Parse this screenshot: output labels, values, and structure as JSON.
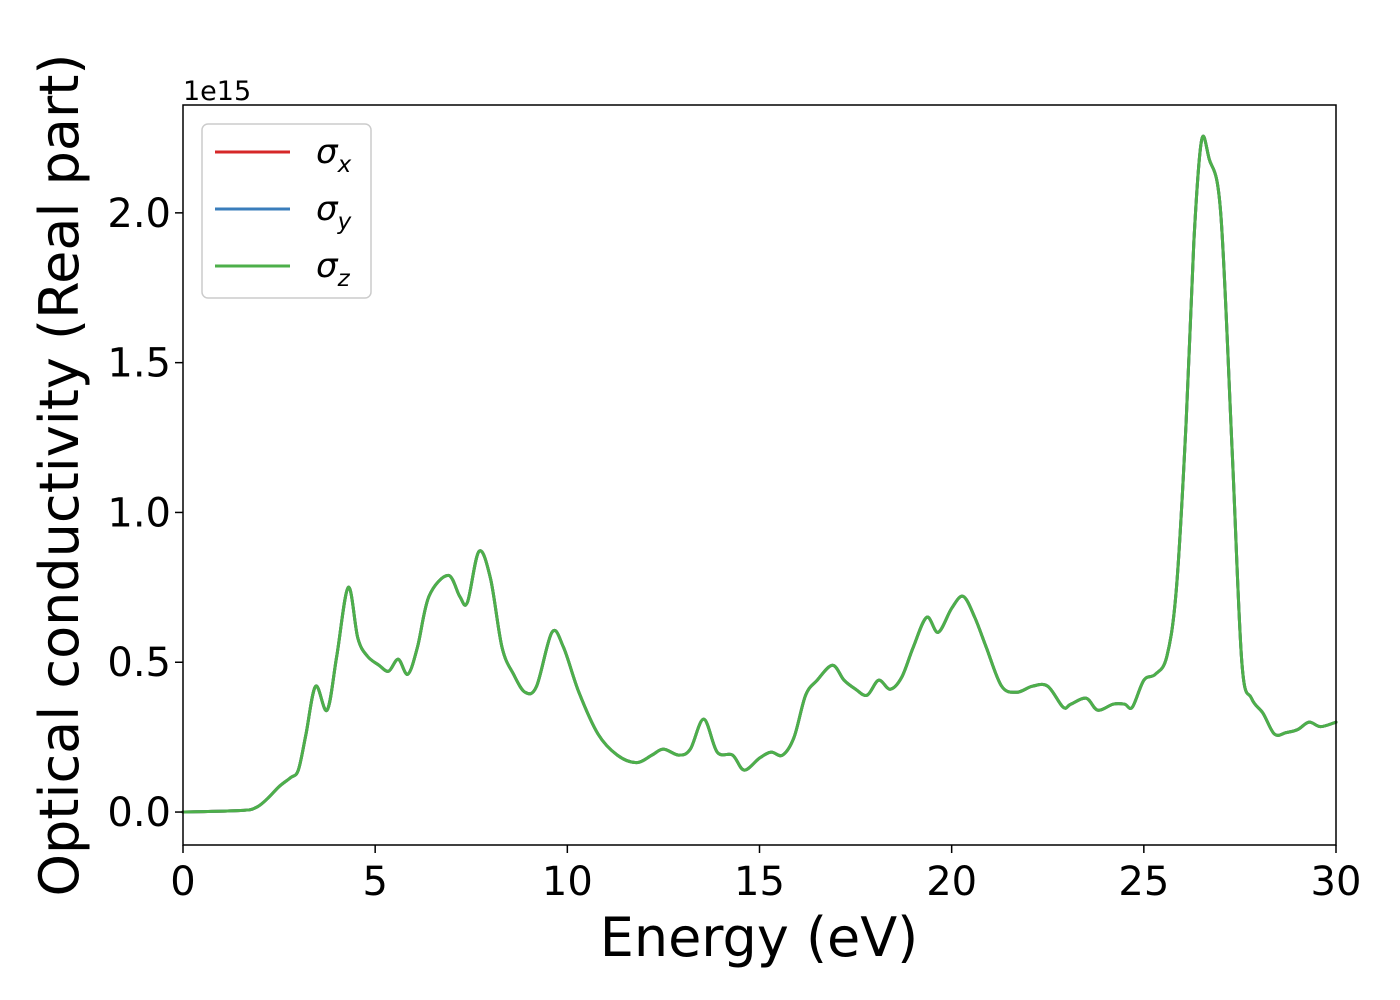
{
  "chart_data": {
    "type": "line",
    "xlabel": "Energy (eV)",
    "ylabel": "Optical conductivity (Real part)",
    "y_offset_label": "1e15",
    "xlim": [
      0,
      30
    ],
    "ylim": [
      -0.11,
      2.36
    ],
    "x_ticks": [
      0,
      5,
      10,
      15,
      20,
      25,
      30
    ],
    "x_tick_labels": [
      "0",
      "5",
      "10",
      "15",
      "20",
      "25",
      "30"
    ],
    "y_ticks": [
      0.0,
      0.5,
      1.0,
      1.5,
      2.0
    ],
    "y_tick_labels": [
      "0.0",
      "0.5",
      "1.0",
      "1.5",
      "2.0"
    ],
    "grid": false,
    "legend_position": "top-left",
    "series": [
      {
        "name": "σx",
        "legend_base": "σ",
        "legend_sub": "x",
        "color": "#d62728",
        "x": [
          0,
          1.5,
          1.9,
          2.2,
          2.5,
          2.8,
          3.0,
          3.2,
          3.45,
          3.75,
          4.0,
          4.3,
          4.55,
          4.8,
          5.1,
          5.35,
          5.6,
          5.85,
          6.1,
          6.4,
          6.9,
          7.2,
          7.4,
          7.7,
          8.0,
          8.3,
          8.6,
          8.9,
          9.2,
          9.6,
          9.9,
          10.3,
          10.8,
          11.3,
          11.8,
          12.2,
          12.5,
          12.9,
          13.2,
          13.55,
          13.9,
          14.3,
          14.6,
          15.0,
          15.3,
          15.6,
          15.9,
          16.2,
          16.5,
          16.9,
          17.2,
          17.5,
          17.8,
          18.1,
          18.4,
          18.7,
          19.0,
          19.35,
          19.65,
          20.0,
          20.3,
          20.6,
          20.9,
          21.3,
          21.7,
          22.1,
          22.5,
          22.9,
          23.1,
          23.5,
          23.8,
          24.2,
          24.5,
          24.7,
          25.0,
          25.3,
          25.6,
          25.85,
          26.1,
          26.3,
          26.5,
          26.7,
          27.0,
          27.3,
          27.55,
          27.8,
          28.1,
          28.4,
          28.7,
          29.0,
          29.3,
          29.6,
          30.0
        ],
        "values": [
          0.0,
          0.005,
          0.015,
          0.045,
          0.085,
          0.115,
          0.14,
          0.26,
          0.42,
          0.34,
          0.52,
          0.75,
          0.58,
          0.52,
          0.49,
          0.47,
          0.51,
          0.46,
          0.55,
          0.72,
          0.79,
          0.72,
          0.7,
          0.87,
          0.78,
          0.55,
          0.46,
          0.4,
          0.42,
          0.6,
          0.55,
          0.4,
          0.26,
          0.19,
          0.165,
          0.19,
          0.21,
          0.19,
          0.21,
          0.31,
          0.2,
          0.19,
          0.14,
          0.18,
          0.2,
          0.19,
          0.25,
          0.39,
          0.44,
          0.49,
          0.44,
          0.41,
          0.39,
          0.44,
          0.41,
          0.45,
          0.55,
          0.65,
          0.6,
          0.68,
          0.72,
          0.65,
          0.55,
          0.42,
          0.4,
          0.42,
          0.42,
          0.35,
          0.36,
          0.38,
          0.34,
          0.36,
          0.36,
          0.35,
          0.44,
          0.46,
          0.52,
          0.75,
          1.3,
          1.9,
          2.24,
          2.18,
          2.0,
          1.2,
          0.5,
          0.38,
          0.33,
          0.26,
          0.265,
          0.275,
          0.3,
          0.285,
          0.3
        ]
      },
      {
        "name": "σy",
        "legend_base": "σ",
        "legend_sub": "y",
        "color": "#3a7dbb",
        "x": [
          0,
          1.5,
          1.9,
          2.2,
          2.5,
          2.8,
          3.0,
          3.2,
          3.45,
          3.75,
          4.0,
          4.3,
          4.55,
          4.8,
          5.1,
          5.35,
          5.6,
          5.85,
          6.1,
          6.4,
          6.9,
          7.2,
          7.4,
          7.7,
          8.0,
          8.3,
          8.6,
          8.9,
          9.2,
          9.6,
          9.9,
          10.3,
          10.8,
          11.3,
          11.8,
          12.2,
          12.5,
          12.9,
          13.2,
          13.55,
          13.9,
          14.3,
          14.6,
          15.0,
          15.3,
          15.6,
          15.9,
          16.2,
          16.5,
          16.9,
          17.2,
          17.5,
          17.8,
          18.1,
          18.4,
          18.7,
          19.0,
          19.35,
          19.65,
          20.0,
          20.3,
          20.6,
          20.9,
          21.3,
          21.7,
          22.1,
          22.5,
          22.9,
          23.1,
          23.5,
          23.8,
          24.2,
          24.5,
          24.7,
          25.0,
          25.3,
          25.6,
          25.85,
          26.1,
          26.3,
          26.5,
          26.7,
          27.0,
          27.3,
          27.55,
          27.8,
          28.1,
          28.4,
          28.7,
          29.0,
          29.3,
          29.6,
          30.0
        ],
        "values": [
          0.0,
          0.005,
          0.015,
          0.045,
          0.085,
          0.115,
          0.14,
          0.26,
          0.42,
          0.34,
          0.52,
          0.75,
          0.58,
          0.52,
          0.49,
          0.47,
          0.51,
          0.46,
          0.55,
          0.72,
          0.79,
          0.72,
          0.7,
          0.87,
          0.78,
          0.55,
          0.46,
          0.4,
          0.42,
          0.6,
          0.55,
          0.4,
          0.26,
          0.19,
          0.165,
          0.19,
          0.21,
          0.19,
          0.21,
          0.31,
          0.2,
          0.19,
          0.14,
          0.18,
          0.2,
          0.19,
          0.25,
          0.39,
          0.44,
          0.49,
          0.44,
          0.41,
          0.39,
          0.44,
          0.41,
          0.45,
          0.55,
          0.65,
          0.6,
          0.68,
          0.72,
          0.65,
          0.55,
          0.42,
          0.4,
          0.42,
          0.42,
          0.35,
          0.36,
          0.38,
          0.34,
          0.36,
          0.36,
          0.35,
          0.44,
          0.46,
          0.52,
          0.75,
          1.3,
          1.9,
          2.24,
          2.18,
          2.0,
          1.2,
          0.5,
          0.38,
          0.33,
          0.26,
          0.265,
          0.275,
          0.3,
          0.285,
          0.3
        ]
      },
      {
        "name": "σz",
        "legend_base": "σ",
        "legend_sub": "z",
        "color": "#4daf4a",
        "x": [
          0,
          1.5,
          1.9,
          2.2,
          2.5,
          2.8,
          3.0,
          3.2,
          3.45,
          3.75,
          4.0,
          4.3,
          4.55,
          4.8,
          5.1,
          5.35,
          5.6,
          5.85,
          6.1,
          6.4,
          6.9,
          7.2,
          7.4,
          7.7,
          8.0,
          8.3,
          8.6,
          8.9,
          9.2,
          9.6,
          9.9,
          10.3,
          10.8,
          11.3,
          11.8,
          12.2,
          12.5,
          12.9,
          13.2,
          13.55,
          13.9,
          14.3,
          14.6,
          15.0,
          15.3,
          15.6,
          15.9,
          16.2,
          16.5,
          16.9,
          17.2,
          17.5,
          17.8,
          18.1,
          18.4,
          18.7,
          19.0,
          19.35,
          19.65,
          20.0,
          20.3,
          20.6,
          20.9,
          21.3,
          21.7,
          22.1,
          22.5,
          22.9,
          23.1,
          23.5,
          23.8,
          24.2,
          24.5,
          24.7,
          25.0,
          25.3,
          25.6,
          25.85,
          26.1,
          26.3,
          26.5,
          26.7,
          27.0,
          27.3,
          27.55,
          27.8,
          28.1,
          28.4,
          28.7,
          29.0,
          29.3,
          29.6,
          30.0
        ],
        "values": [
          0.0,
          0.005,
          0.015,
          0.045,
          0.085,
          0.115,
          0.14,
          0.26,
          0.42,
          0.34,
          0.52,
          0.75,
          0.58,
          0.52,
          0.49,
          0.47,
          0.51,
          0.46,
          0.55,
          0.72,
          0.79,
          0.72,
          0.7,
          0.87,
          0.78,
          0.55,
          0.46,
          0.4,
          0.42,
          0.6,
          0.55,
          0.4,
          0.26,
          0.19,
          0.165,
          0.19,
          0.21,
          0.19,
          0.21,
          0.31,
          0.2,
          0.19,
          0.14,
          0.18,
          0.2,
          0.19,
          0.25,
          0.39,
          0.44,
          0.49,
          0.44,
          0.41,
          0.39,
          0.44,
          0.41,
          0.45,
          0.55,
          0.65,
          0.6,
          0.68,
          0.72,
          0.65,
          0.55,
          0.42,
          0.4,
          0.42,
          0.42,
          0.35,
          0.36,
          0.38,
          0.34,
          0.36,
          0.36,
          0.35,
          0.44,
          0.46,
          0.52,
          0.75,
          1.3,
          1.9,
          2.24,
          2.18,
          2.0,
          1.2,
          0.5,
          0.38,
          0.33,
          0.26,
          0.265,
          0.275,
          0.3,
          0.285,
          0.3
        ]
      }
    ]
  }
}
